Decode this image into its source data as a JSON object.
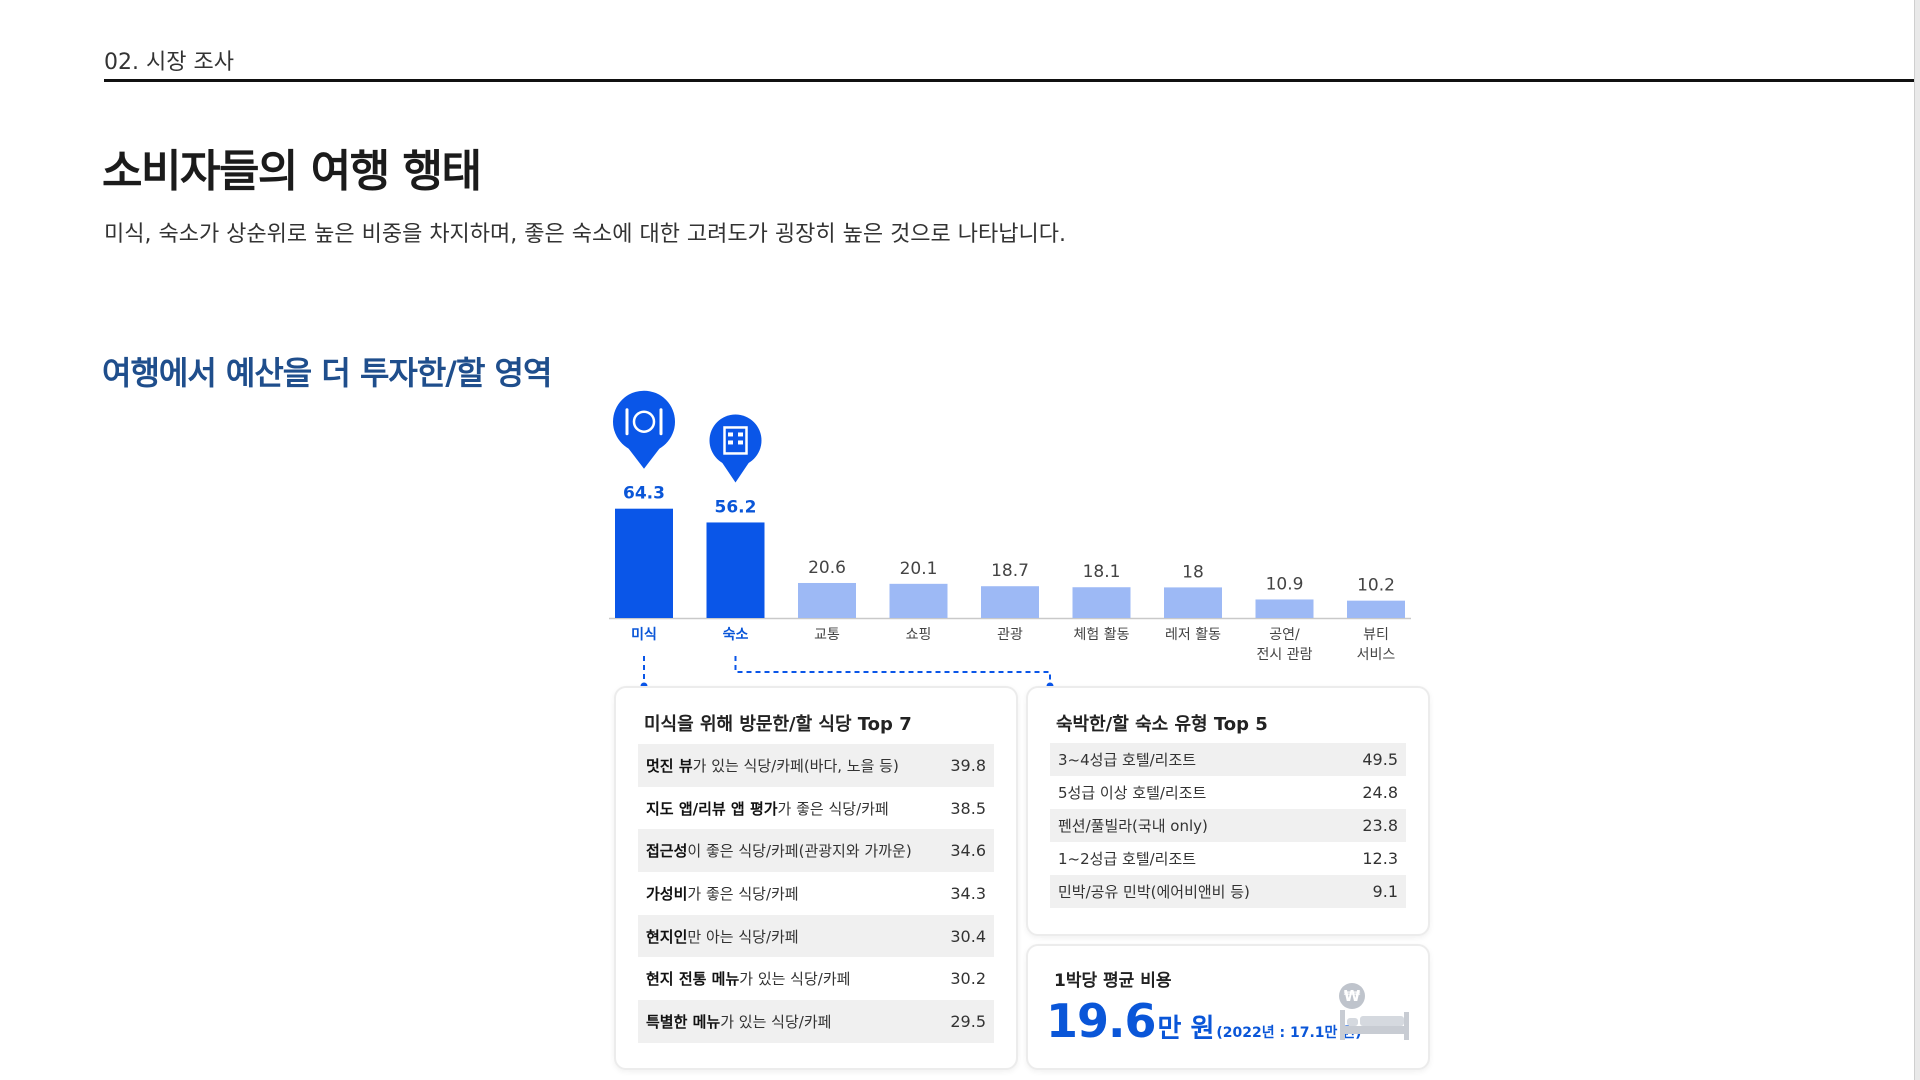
{
  "header": {
    "section_label": "02. 시장 조사",
    "title": "소비자들의 여행 행태",
    "subtitle": "미식, 숙소가 상순위로 높은 비중을 차지하며,  좋은 숙소에 대한 고려도가 굉장히 높은 것으로 나타납니다."
  },
  "chart_title": "여행에서 예산을 더 투자한/할 영역",
  "colors": {
    "highlight_bar": "#0a56e8",
    "normal_bar": "#9db9f5",
    "accent_text": "#0a56d8",
    "chart_title": "#1f4e8c"
  },
  "chart_data": {
    "type": "bar",
    "categories": [
      "미식",
      "숙소",
      "교통",
      "쇼핑",
      "관광",
      "체험 활동",
      "레저 활동",
      "공연/\n전시 관람",
      "뷰티\n서비스"
    ],
    "values": [
      64.3,
      56.2,
      20.6,
      20.1,
      18.7,
      18.1,
      18.0,
      10.9,
      10.2
    ],
    "highlighted": [
      true,
      true,
      false,
      false,
      false,
      false,
      false,
      false,
      false
    ],
    "icons": [
      "dining-icon",
      "hotel-icon"
    ],
    "title": "",
    "xlabel": "",
    "ylabel": "",
    "ylim": [
      0,
      70
    ],
    "grid": false,
    "legend": "none"
  },
  "dining": {
    "title": "미식을 위해 방문한/할 식당 Top 7",
    "rows": [
      {
        "bold": "멋진 뷰",
        "rest": "가 있는 식당/카페(바다, 노을 등)",
        "value": "39.8"
      },
      {
        "bold": "지도 앱/리뷰 앱 평가",
        "rest": "가 좋은 식당/카페",
        "value": "38.5"
      },
      {
        "bold": "접근성",
        "rest": "이 좋은 식당/카페(관광지와 가까운)",
        "value": "34.6"
      },
      {
        "bold": "가성비",
        "rest": "가 좋은 식당/카페",
        "value": "34.3"
      },
      {
        "bold": "현지인",
        "rest": "만 아는 식당/카페",
        "value": "30.4"
      },
      {
        "bold": "현지 전통 메뉴",
        "rest": "가 있는 식당/카페",
        "value": "30.2"
      },
      {
        "bold": "특별한 메뉴",
        "rest": "가 있는 식당/카페",
        "value": "29.5"
      }
    ]
  },
  "stay": {
    "title": "숙박한/할 숙소 유형 Top 5",
    "rows": [
      {
        "label": "3~4성급 호텔/리조트",
        "value": "49.5"
      },
      {
        "label": "5성급 이상 호텔/리조트",
        "value": "24.8"
      },
      {
        "label": "펜션/풀빌라(국내 only)",
        "value": "23.8"
      },
      {
        "label": "1~2성급 호텔/리조트",
        "value": "12.3"
      },
      {
        "label": "민박/공유 민박(에어비앤비 등)",
        "value": "9.1"
      }
    ]
  },
  "cost": {
    "title": "1박당 평균 비용",
    "number": "19.6",
    "unit": "만 원",
    "note": "(2022년 : 17.1만 원)",
    "icon": "bed-won-icon"
  }
}
